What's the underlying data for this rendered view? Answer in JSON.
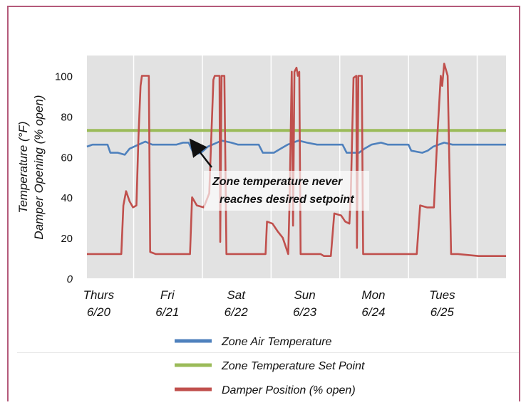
{
  "chart_data": {
    "type": "line",
    "title": "",
    "xlabel": "",
    "ylabel_line1": "Temperature (°F)",
    "ylabel_line2": "Damper Opening (% open)",
    "ylim": [
      0,
      110
    ],
    "yticks": [
      0,
      20,
      40,
      60,
      80,
      100
    ],
    "xlim": [
      0,
      6.1
    ],
    "x_ticks": [
      {
        "day": "Thurs",
        "date": "6/20",
        "x": 0.17
      },
      {
        "day": "Fri",
        "date": "6/21",
        "x": 1.17
      },
      {
        "day": "Sat",
        "date": "6/22",
        "x": 2.17
      },
      {
        "day": "Sun",
        "date": "6/23",
        "x": 3.17
      },
      {
        "day": "Mon",
        "date": "6/24",
        "x": 4.17
      },
      {
        "day": "Tues",
        "date": "6/25",
        "x": 5.17
      }
    ],
    "grid": "vertical",
    "annotation": {
      "line1": "Zone temperature never",
      "line2": "reaches desired setpoint",
      "arrow_to": {
        "x": 1.57,
        "y": 67
      }
    },
    "series": [
      {
        "name": "Zone Air Temperature",
        "color": "#4f81bd",
        "points": [
          [
            0,
            65
          ],
          [
            0.08,
            66
          ],
          [
            0.3,
            66
          ],
          [
            0.34,
            62
          ],
          [
            0.45,
            62
          ],
          [
            0.55,
            61
          ],
          [
            0.62,
            64
          ],
          [
            0.75,
            66
          ],
          [
            0.85,
            67.5
          ],
          [
            0.95,
            66
          ],
          [
            1.3,
            66
          ],
          [
            1.4,
            67
          ],
          [
            1.48,
            67
          ],
          [
            1.56,
            61
          ],
          [
            1.66,
            62
          ],
          [
            1.76,
            65
          ],
          [
            1.86,
            66.5
          ],
          [
            1.96,
            68
          ],
          [
            2.1,
            67
          ],
          [
            2.2,
            66
          ],
          [
            2.5,
            66
          ],
          [
            2.56,
            62
          ],
          [
            2.72,
            62
          ],
          [
            2.82,
            64
          ],
          [
            2.92,
            66
          ],
          [
            3.08,
            68
          ],
          [
            3.2,
            67
          ],
          [
            3.35,
            66
          ],
          [
            3.72,
            66
          ],
          [
            3.78,
            62
          ],
          [
            3.96,
            62
          ],
          [
            4.04,
            64
          ],
          [
            4.14,
            66
          ],
          [
            4.28,
            67
          ],
          [
            4.38,
            66
          ],
          [
            4.68,
            66
          ],
          [
            4.72,
            63
          ],
          [
            4.88,
            62
          ],
          [
            4.96,
            63
          ],
          [
            5.04,
            65
          ],
          [
            5.2,
            67
          ],
          [
            5.32,
            66
          ],
          [
            5.7,
            66
          ],
          [
            5.9,
            66
          ],
          [
            6.1,
            66
          ]
        ]
      },
      {
        "name": "Zone Temperature Set Point",
        "color": "#9bbb59",
        "points": [
          [
            0,
            73
          ],
          [
            6.1,
            73
          ]
        ]
      },
      {
        "name": "Damper Position (% open)",
        "color": "#c0504d",
        "points": [
          [
            0,
            12
          ],
          [
            0.5,
            12
          ],
          [
            0.5,
            12
          ],
          [
            0.53,
            36
          ],
          [
            0.57,
            43
          ],
          [
            0.62,
            38
          ],
          [
            0.67,
            35
          ],
          [
            0.72,
            36
          ],
          [
            0.75,
            70
          ],
          [
            0.78,
            95
          ],
          [
            0.8,
            100
          ],
          [
            0.9,
            100
          ],
          [
            0.92,
            13
          ],
          [
            1.0,
            12
          ],
          [
            1.2,
            12
          ],
          [
            1.5,
            12
          ],
          [
            1.53,
            40
          ],
          [
            1.6,
            36
          ],
          [
            1.7,
            35
          ],
          [
            1.78,
            42
          ],
          [
            1.84,
            98
          ],
          [
            1.86,
            100
          ],
          [
            1.93,
            100
          ],
          [
            1.94,
            18
          ],
          [
            1.96,
            100
          ],
          [
            2.0,
            100
          ],
          [
            2.03,
            12
          ],
          [
            2.1,
            12
          ],
          [
            2.6,
            12
          ],
          [
            2.62,
            28
          ],
          [
            2.7,
            27
          ],
          [
            2.78,
            23
          ],
          [
            2.85,
            20
          ],
          [
            2.93,
            12
          ],
          [
            2.95,
            40
          ],
          [
            2.98,
            102
          ],
          [
            3.0,
            26
          ],
          [
            3.02,
            102
          ],
          [
            3.05,
            104
          ],
          [
            3.07,
            100
          ],
          [
            3.09,
            102
          ],
          [
            3.11,
            12
          ],
          [
            3.2,
            12
          ],
          [
            3.4,
            12
          ],
          [
            3.45,
            11
          ],
          [
            3.55,
            11
          ],
          [
            3.6,
            32
          ],
          [
            3.7,
            31
          ],
          [
            3.76,
            28
          ],
          [
            3.82,
            27
          ],
          [
            3.84,
            42
          ],
          [
            3.88,
            99
          ],
          [
            3.92,
            100
          ],
          [
            3.93,
            15
          ],
          [
            3.95,
            100
          ],
          [
            4.0,
            100
          ],
          [
            4.02,
            12
          ],
          [
            4.2,
            12
          ],
          [
            4.8,
            12
          ],
          [
            4.85,
            36
          ],
          [
            4.95,
            35
          ],
          [
            5.05,
            35
          ],
          [
            5.1,
            70
          ],
          [
            5.15,
            100
          ],
          [
            5.17,
            95
          ],
          [
            5.2,
            106
          ],
          [
            5.25,
            100
          ],
          [
            5.3,
            12
          ],
          [
            5.4,
            12
          ],
          [
            5.7,
            11
          ],
          [
            6.1,
            11
          ]
        ]
      }
    ],
    "legend_placement": "bottom"
  }
}
